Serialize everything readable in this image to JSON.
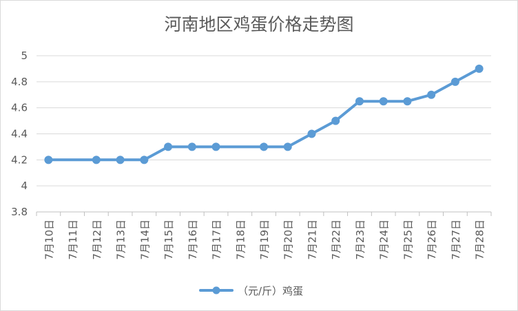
{
  "chart_data": {
    "type": "line",
    "title": "河南地区鸡蛋价格走势图",
    "categories": [
      "7月10日",
      "7月11日",
      "7月12日",
      "7月13日",
      "7月14日",
      "7月15日",
      "7月16日",
      "7月17日",
      "7月18日",
      "7月19日",
      "7月20日",
      "7月21日",
      "7月22日",
      "7月23日",
      "7月24日",
      "7月25日",
      "7月26日",
      "7月27日",
      "7月28日"
    ],
    "series": [
      {
        "name": "（元/斤）鸡蛋",
        "color": "#5b9bd5",
        "values": [
          4.2,
          null,
          4.2,
          4.2,
          4.2,
          4.3,
          4.3,
          4.3,
          null,
          4.3,
          4.3,
          4.4,
          4.5,
          4.65,
          4.65,
          4.65,
          4.7,
          4.8,
          4.9
        ]
      }
    ],
    "ylim": [
      3.8,
      5.0
    ],
    "yticks": [
      3.8,
      4.0,
      4.2,
      4.4,
      4.6,
      4.8,
      5.0
    ],
    "ytick_labels": [
      "3.8",
      "4",
      "4.2",
      "4.4",
      "4.6",
      "4.8",
      "5"
    ],
    "grid": true,
    "legend_position": "bottom"
  }
}
